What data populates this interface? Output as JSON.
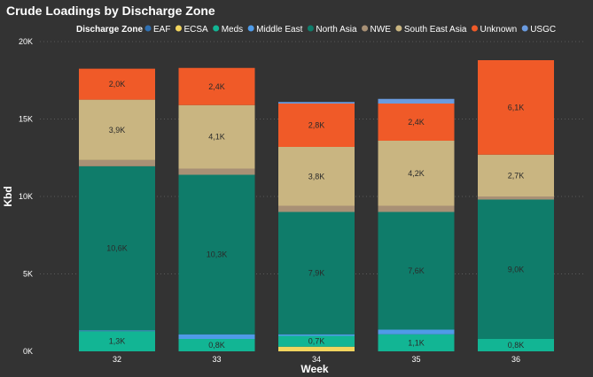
{
  "chart_data": {
    "type": "bar",
    "stacked": true,
    "title": "Crude Loadings by Discharge Zone",
    "legend_title": "Discharge Zone",
    "xlabel": "Week",
    "ylabel": "Kbd",
    "ylim": [
      0,
      20000
    ],
    "yticks": [
      0,
      5000,
      10000,
      15000,
      20000
    ],
    "ytick_labels": [
      "0K",
      "5K",
      "10K",
      "15K",
      "20K"
    ],
    "grid": true,
    "legend_position": "top",
    "categories": [
      "32",
      "33",
      "34",
      "35",
      "36"
    ],
    "series": [
      {
        "name": "EAF",
        "color": "#2f6fb0",
        "values": [
          0,
          0,
          0,
          0,
          0
        ],
        "labels": [
          "",
          "",
          "",
          "",
          ""
        ]
      },
      {
        "name": "ECSA",
        "color": "#f2d55e",
        "values": [
          0,
          0,
          300,
          0,
          0
        ],
        "labels": [
          "",
          "",
          "",
          "",
          ""
        ]
      },
      {
        "name": "Meds",
        "color": "#12b594",
        "values": [
          1300,
          800,
          700,
          1100,
          800
        ],
        "labels": [
          "1,3K",
          "0,8K",
          "0,7K",
          "1,1K",
          "0,8K"
        ]
      },
      {
        "name": "Middle East",
        "color": "#4f9be8",
        "values": [
          50,
          300,
          100,
          300,
          0
        ],
        "labels": [
          "",
          "",
          "",
          "",
          ""
        ]
      },
      {
        "name": "North Asia",
        "color": "#0f7c6a",
        "values": [
          10600,
          10300,
          7900,
          7600,
          9000
        ],
        "labels": [
          "10,6K",
          "10,3K",
          "7,9K",
          "7,6K",
          "9,0K"
        ]
      },
      {
        "name": "NWE",
        "color": "#a89075",
        "values": [
          400,
          400,
          400,
          400,
          200
        ],
        "labels": [
          "",
          "",
          "",
          "",
          ""
        ]
      },
      {
        "name": "South East Asia",
        "color": "#c9b581",
        "values": [
          3900,
          4100,
          3800,
          4200,
          2700
        ],
        "labels": [
          "3,9K",
          "4,1K",
          "3,8K",
          "4,2K",
          "2,7K"
        ]
      },
      {
        "name": "Unknown",
        "color": "#f05a28",
        "values": [
          2000,
          2400,
          2800,
          2400,
          6100
        ],
        "labels": [
          "2,0K",
          "2,4K",
          "2,8K",
          "2,4K",
          "6,1K"
        ]
      },
      {
        "name": "USGC",
        "color": "#6a9be0",
        "values": [
          0,
          0,
          100,
          300,
          0
        ],
        "labels": [
          "",
          "",
          "",
          "",
          ""
        ]
      }
    ]
  }
}
